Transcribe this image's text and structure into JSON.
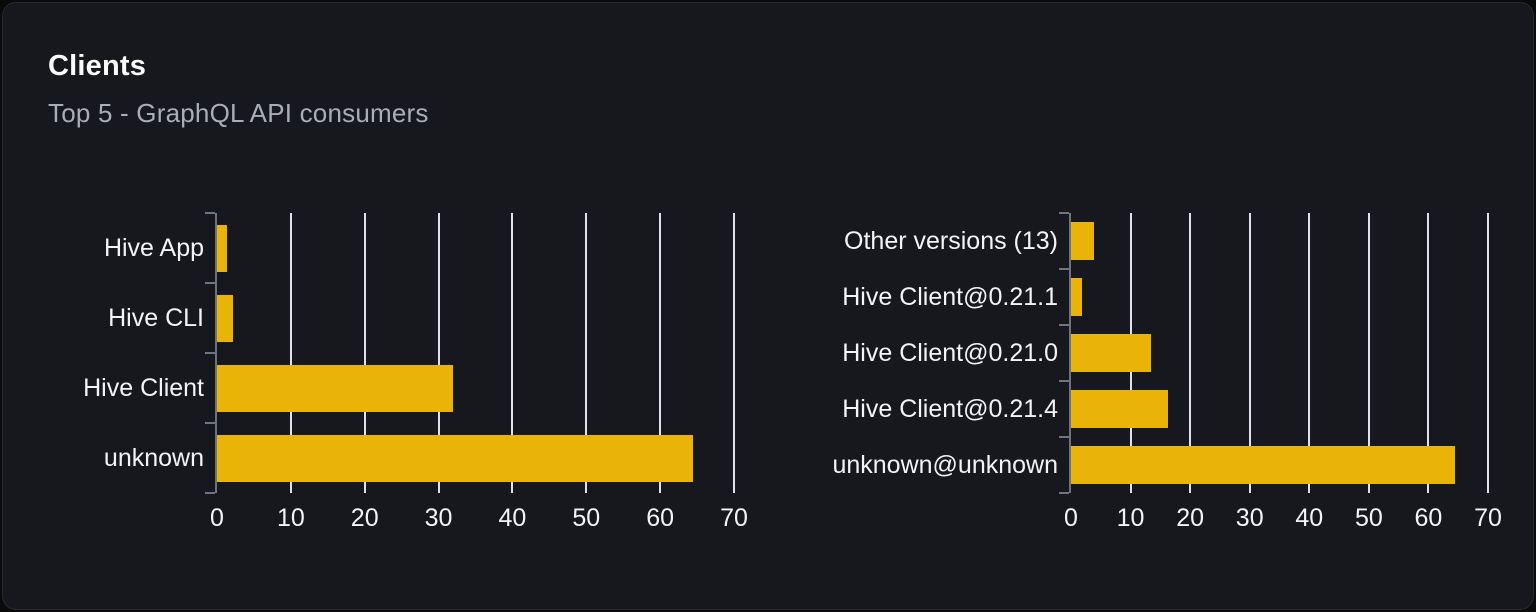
{
  "header": {
    "title": "Clients",
    "subtitle": "Top 5 - GraphQL API consumers"
  },
  "colors": {
    "bar": "#eab308",
    "card_bg": "#16181d",
    "page_bg": "#0a0a0b",
    "grid": "#dfe2e8",
    "axis": "#6e7380",
    "title": "#fafafa",
    "subtitle": "#a9aeb6",
    "label": "#f2f3f5",
    "border": "#272a31"
  },
  "chart_data": [
    {
      "type": "bar",
      "orientation": "horizontal",
      "name": "clients-by-name",
      "categories": [
        "Hive App",
        "Hive CLI",
        "Hive Client",
        "unknown"
      ],
      "values": [
        1.3,
        2.1,
        32,
        64.5
      ],
      "xlim": [
        0,
        70
      ],
      "xticks": [
        0,
        10,
        20,
        30,
        40,
        50,
        60,
        70
      ],
      "grid": true,
      "legend": false
    },
    {
      "type": "bar",
      "orientation": "horizontal",
      "name": "clients-by-version",
      "categories": [
        "Other versions (13)",
        "Hive Client@0.21.1",
        "Hive Client@0.21.0",
        "Hive Client@0.21.4",
        "unknown@unknown"
      ],
      "values": [
        3.9,
        1.9,
        13.4,
        16.2,
        64.5
      ],
      "xlim": [
        0,
        70
      ],
      "xticks": [
        0,
        10,
        20,
        30,
        40,
        50,
        60,
        70
      ],
      "grid": true,
      "legend": false
    }
  ]
}
